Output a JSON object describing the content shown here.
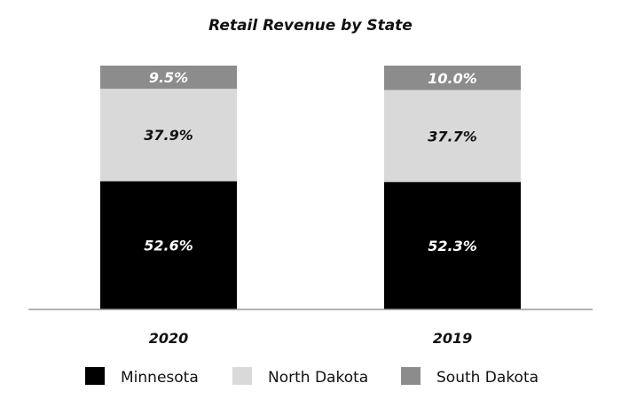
{
  "chart_data": {
    "type": "bar",
    "stacked": true,
    "title": "Retail Revenue by State",
    "categories": [
      "2020",
      "2019"
    ],
    "ylim": [
      0,
      100
    ],
    "grid": false,
    "legend_position": "bottom",
    "series": [
      {
        "name": "Minnesota",
        "values": [
          52.6,
          52.3
        ],
        "labels": [
          "52.6%",
          "52.3%"
        ],
        "color": "#000000",
        "label_color": "#ffffff"
      },
      {
        "name": "North Dakota",
        "values": [
          37.9,
          37.7
        ],
        "labels": [
          "37.9%",
          "37.7%"
        ],
        "color": "#d9d9d9",
        "label_color": "#111111"
      },
      {
        "name": "South Dakota",
        "values": [
          9.5,
          10.0
        ],
        "labels": [
          "9.5%",
          "10.0%"
        ],
        "color": "#8c8c8c",
        "label_color": "#ffffff"
      }
    ]
  }
}
